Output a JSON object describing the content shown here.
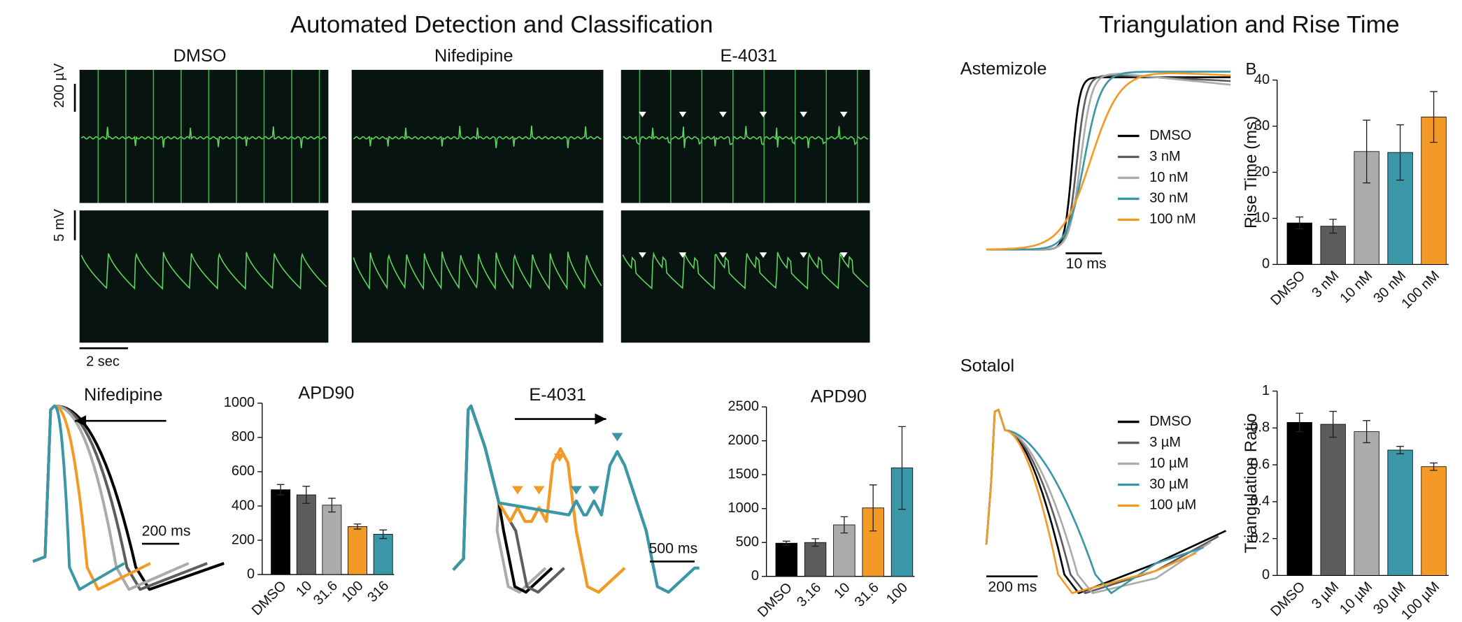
{
  "figure": {
    "titles": [
      "Automated Detection and Classification",
      "Triangulation and Rise Time"
    ],
    "panel_label": "B",
    "ecg_columns": [
      "DMSO",
      "Nifedipine",
      "E-4031"
    ],
    "ecg_scales": [
      "200 µV",
      "5 mV",
      "2 sec"
    ]
  },
  "chart_data": [
    {
      "type": "bar",
      "title": "APD90",
      "categories": [
        "DMSO",
        "10",
        "31.6",
        "100",
        "316"
      ],
      "values": [
        495,
        465,
        405,
        280,
        235
      ],
      "errors": [
        30,
        50,
        40,
        15,
        25
      ],
      "colors": [
        "#000000",
        "#5d5d5d",
        "#ababab",
        "#f39a26",
        "#3a97a7"
      ],
      "ylim": [
        0,
        1000
      ],
      "yticks": [
        0,
        200,
        400,
        600,
        800,
        1000
      ]
    },
    {
      "type": "bar",
      "title": "APD90",
      "categories": [
        "DMSO",
        "3.16",
        "10",
        "31.6",
        "100"
      ],
      "values": [
        490,
        500,
        760,
        1010,
        1600
      ],
      "errors": [
        30,
        55,
        120,
        340,
        610
      ],
      "colors": [
        "#000000",
        "#5d5d5d",
        "#ababab",
        "#f39a26",
        "#3a97a7"
      ],
      "ylim": [
        0,
        2500
      ],
      "yticks": [
        0,
        500,
        1000,
        1500,
        2000,
        2500
      ]
    },
    {
      "type": "bar",
      "y_label": "Rise Time (ms)",
      "categories": [
        "DMSO",
        "3 nM",
        "10 nM",
        "30 nM",
        "100 nM"
      ],
      "values": [
        9,
        8.3,
        24.5,
        24.3,
        32
      ],
      "errors": [
        1.3,
        1.5,
        6.8,
        6,
        5.5
      ],
      "colors": [
        "#000000",
        "#5d5d5d",
        "#ababab",
        "#3a97a7",
        "#f39a26"
      ],
      "ylim": [
        0,
        40
      ],
      "yticks": [
        0,
        10,
        20,
        30,
        40
      ]
    },
    {
      "type": "bar",
      "y_label": "Triangulation Ratio",
      "categories": [
        "DMSO",
        "3 µM",
        "10 µM",
        "30 µM",
        "100 µM"
      ],
      "values": [
        0.83,
        0.82,
        0.78,
        0.68,
        0.59
      ],
      "errors": [
        0.05,
        0.07,
        0.06,
        0.02,
        0.02
      ],
      "colors": [
        "#000000",
        "#5d5d5d",
        "#ababab",
        "#3a97a7",
        "#f39a26"
      ],
      "ylim": [
        0,
        1
      ],
      "yticks": [
        0,
        0.2,
        0.4,
        0.6,
        0.8,
        1
      ]
    },
    {
      "type": "trace",
      "title": "Nifedipine",
      "scale_bar": "200 ms",
      "series": [
        {
          "color": "#000000"
        },
        {
          "color": "#5d5d5d"
        },
        {
          "color": "#ababab"
        },
        {
          "color": "#f39a26"
        },
        {
          "color": "#3a97a7"
        }
      ]
    },
    {
      "type": "trace",
      "title": "E-4031",
      "scale_bar": "500 ms",
      "series": [
        {
          "color": "#000000"
        },
        {
          "color": "#5d5d5d"
        },
        {
          "color": "#ababab"
        },
        {
          "color": "#f39a26"
        },
        {
          "color": "#3a97a7"
        }
      ]
    },
    {
      "type": "trace",
      "title": "Astemizole",
      "scale_bar": "10 ms",
      "series": [
        {
          "name": "DMSO",
          "color": "#000000"
        },
        {
          "name": "3 nM",
          "color": "#5d5d5d"
        },
        {
          "name": "10 nM",
          "color": "#ababab"
        },
        {
          "name": "30 nM",
          "color": "#3a97a7"
        },
        {
          "name": "100 nM",
          "color": "#f39a26"
        }
      ]
    },
    {
      "type": "trace",
      "title": "Sotalol",
      "scale_bar": "200 ms",
      "series": [
        {
          "name": "DMSO",
          "color": "#000000"
        },
        {
          "name": "3 µM",
          "color": "#5d5d5d"
        },
        {
          "name": "10 µM",
          "color": "#ababab"
        },
        {
          "name": "30 µM",
          "color": "#3a97a7"
        },
        {
          "name": "100 µM",
          "color": "#f39a26"
        }
      ]
    }
  ]
}
